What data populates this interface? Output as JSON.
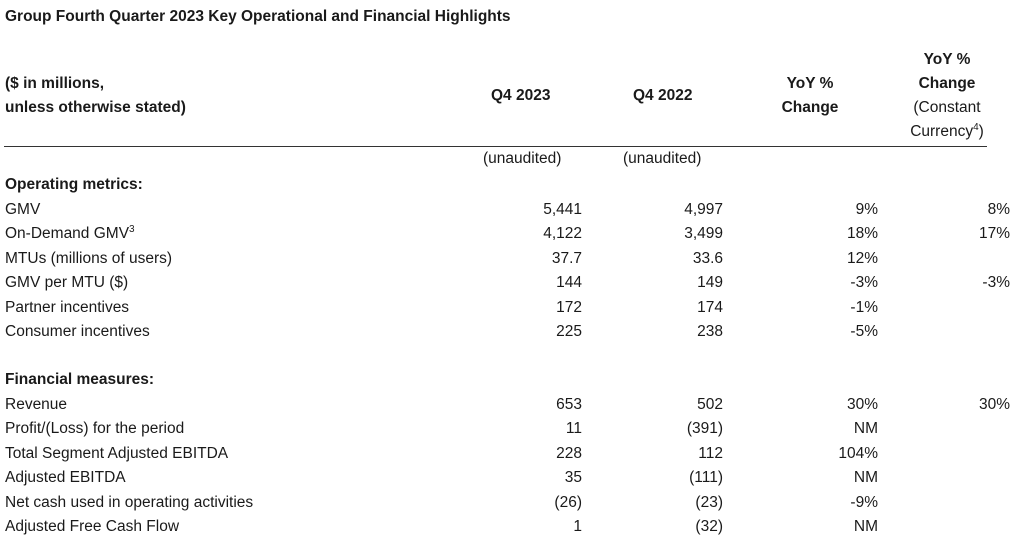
{
  "title": "Group Fourth Quarter 2023 Key Operational and Financial Highlights",
  "header": {
    "label_line1": "($ in millions,",
    "label_line2": "unless otherwise stated)",
    "col1": "Q4 2023",
    "col2": "Q4 2022",
    "col3_line1": "YoY %",
    "col3_line2": "Change",
    "col4_line1": "YoY %",
    "col4_line2": "Change",
    "col4_line3": "(Constant",
    "col4_line4": "Currency",
    "col4_sup": "4",
    "col4_close": ")",
    "unaudited1": "(unaudited)",
    "unaudited2": "(unaudited)"
  },
  "sections": [
    {
      "title": "Operating metrics:",
      "rows": [
        {
          "label": "GMV",
          "sup": "",
          "q4_2023": "5,441",
          "q4_2022": "4,997",
          "yoy": "9%",
          "yoy_cc": "8%"
        },
        {
          "label": "On-Demand GMV",
          "sup": "3",
          "q4_2023": "4,122",
          "q4_2022": "3,499",
          "yoy": "18%",
          "yoy_cc": "17%"
        },
        {
          "label": "MTUs (millions of users)",
          "sup": "",
          "q4_2023": "37.7",
          "q4_2022": "33.6",
          "yoy": "12%",
          "yoy_cc": ""
        },
        {
          "label": "GMV per MTU ($)",
          "sup": "",
          "q4_2023": "144",
          "q4_2022": "149",
          "yoy": "-3%",
          "yoy_cc": "-3%"
        },
        {
          "label": "Partner incentives",
          "sup": "",
          "q4_2023": "172",
          "q4_2022": "174",
          "yoy": "-1%",
          "yoy_cc": ""
        },
        {
          "label": "Consumer incentives",
          "sup": "",
          "q4_2023": "225",
          "q4_2022": "238",
          "yoy": "-5%",
          "yoy_cc": ""
        }
      ]
    },
    {
      "title": "Financial measures:",
      "rows": [
        {
          "label": "Revenue",
          "sup": "",
          "q4_2023": "653",
          "q4_2022": "502",
          "yoy": "30%",
          "yoy_cc": "30%"
        },
        {
          "label": "Profit/(Loss) for the period",
          "sup": "",
          "q4_2023": "11",
          "q4_2022": "(391)",
          "yoy": "NM",
          "yoy_cc": ""
        },
        {
          "label": "Total Segment Adjusted EBITDA",
          "sup": "",
          "q4_2023": "228",
          "q4_2022": "112",
          "yoy": "104%",
          "yoy_cc": ""
        },
        {
          "label": "Adjusted EBITDA",
          "sup": "",
          "q4_2023": "35",
          "q4_2022": "(111)",
          "yoy": "NM",
          "yoy_cc": ""
        },
        {
          "label": "Net cash used in operating activities",
          "sup": "",
          "q4_2023": "(26)",
          "q4_2022": "(23)",
          "yoy": "-9%",
          "yoy_cc": ""
        },
        {
          "label": "Adjusted Free Cash Flow",
          "sup": "",
          "q4_2023": "1",
          "q4_2022": "(32)",
          "yoy": "NM",
          "yoy_cc": ""
        }
      ]
    }
  ]
}
